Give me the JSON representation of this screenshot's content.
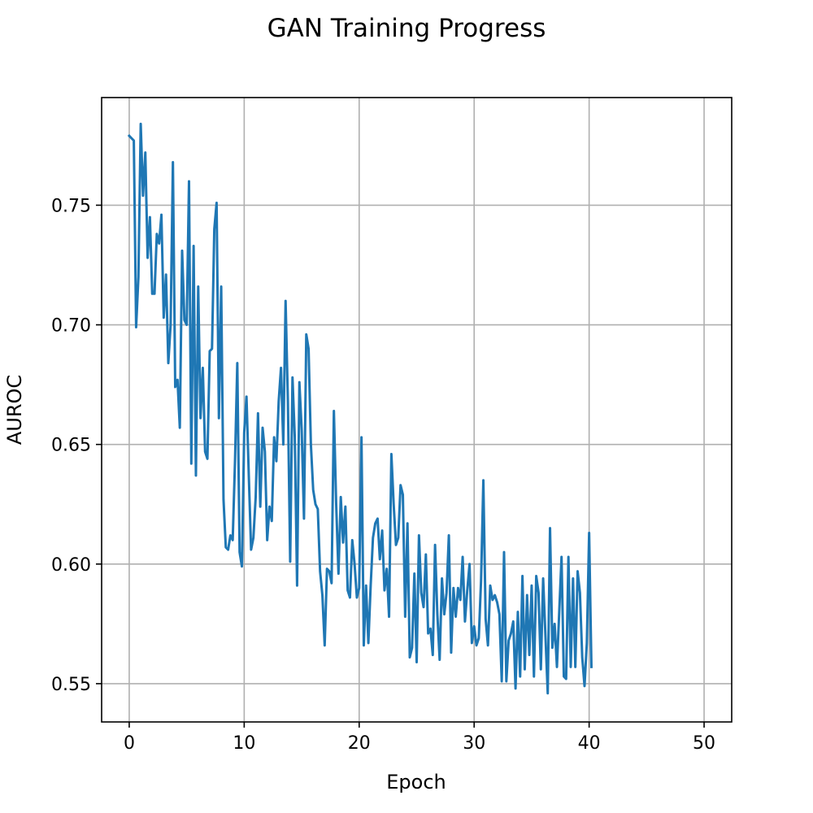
{
  "chart_data": {
    "type": "line",
    "title": "GAN Training Progress",
    "xlabel": "Epoch",
    "ylabel": "AUROC",
    "xlim": [
      -2.4,
      52.4
    ],
    "ylim": [
      0.534,
      0.795
    ],
    "xticks": [
      0,
      10,
      20,
      30,
      40,
      50
    ],
    "xtick_labels": [
      "0",
      "10",
      "20",
      "30",
      "40",
      "50"
    ],
    "yticks": [
      0.55,
      0.6,
      0.65,
      0.7,
      0.75
    ],
    "ytick_labels": [
      "0.55",
      "0.60",
      "0.65",
      "0.70",
      "0.75"
    ],
    "grid": true,
    "series": [
      {
        "color": "#1f77b4",
        "x_start": 0,
        "x_step": 0.2,
        "values": [
          0.779,
          0.778,
          0.777,
          0.699,
          0.72,
          0.784,
          0.754,
          0.772,
          0.728,
          0.745,
          0.713,
          0.713,
          0.738,
          0.734,
          0.746,
          0.703,
          0.721,
          0.684,
          0.7,
          0.768,
          0.674,
          0.677,
          0.657,
          0.731,
          0.702,
          0.7,
          0.76,
          0.642,
          0.733,
          0.637,
          0.716,
          0.661,
          0.682,
          0.647,
          0.644,
          0.689,
          0.69,
          0.74,
          0.751,
          0.661,
          0.716,
          0.627,
          0.607,
          0.606,
          0.612,
          0.61,
          0.643,
          0.684,
          0.605,
          0.599,
          0.655,
          0.67,
          0.637,
          0.606,
          0.611,
          0.628,
          0.663,
          0.624,
          0.657,
          0.647,
          0.61,
          0.624,
          0.618,
          0.653,
          0.643,
          0.668,
          0.682,
          0.65,
          0.71,
          0.668,
          0.601,
          0.678,
          0.653,
          0.591,
          0.676,
          0.656,
          0.619,
          0.696,
          0.69,
          0.65,
          0.631,
          0.625,
          0.623,
          0.597,
          0.587,
          0.566,
          0.598,
          0.597,
          0.592,
          0.664,
          0.625,
          0.596,
          0.628,
          0.609,
          0.624,
          0.589,
          0.586,
          0.61,
          0.6,
          0.586,
          0.59,
          0.653,
          0.566,
          0.591,
          0.567,
          0.591,
          0.611,
          0.617,
          0.619,
          0.602,
          0.614,
          0.589,
          0.598,
          0.578,
          0.646,
          0.625,
          0.608,
          0.611,
          0.633,
          0.629,
          0.578,
          0.617,
          0.561,
          0.565,
          0.596,
          0.559,
          0.612,
          0.588,
          0.582,
          0.604,
          0.571,
          0.573,
          0.562,
          0.608,
          0.579,
          0.56,
          0.594,
          0.579,
          0.588,
          0.612,
          0.563,
          0.59,
          0.578,
          0.59,
          0.585,
          0.603,
          0.576,
          0.589,
          0.6,
          0.567,
          0.574,
          0.566,
          0.569,
          0.593,
          0.635,
          0.577,
          0.566,
          0.591,
          0.585,
          0.587,
          0.584,
          0.579,
          0.551,
          0.605,
          0.551,
          0.568,
          0.571,
          0.576,
          0.548,
          0.58,
          0.553,
          0.595,
          0.556,
          0.587,
          0.562,
          0.591,
          0.553,
          0.595,
          0.588,
          0.556,
          0.594,
          0.57,
          0.546,
          0.615,
          0.565,
          0.575,
          0.557,
          0.58,
          0.603,
          0.553,
          0.552,
          0.603,
          0.557,
          0.594,
          0.557,
          0.597,
          0.588,
          0.561,
          0.549,
          0.567,
          0.613,
          0.557
        ]
      }
    ]
  }
}
